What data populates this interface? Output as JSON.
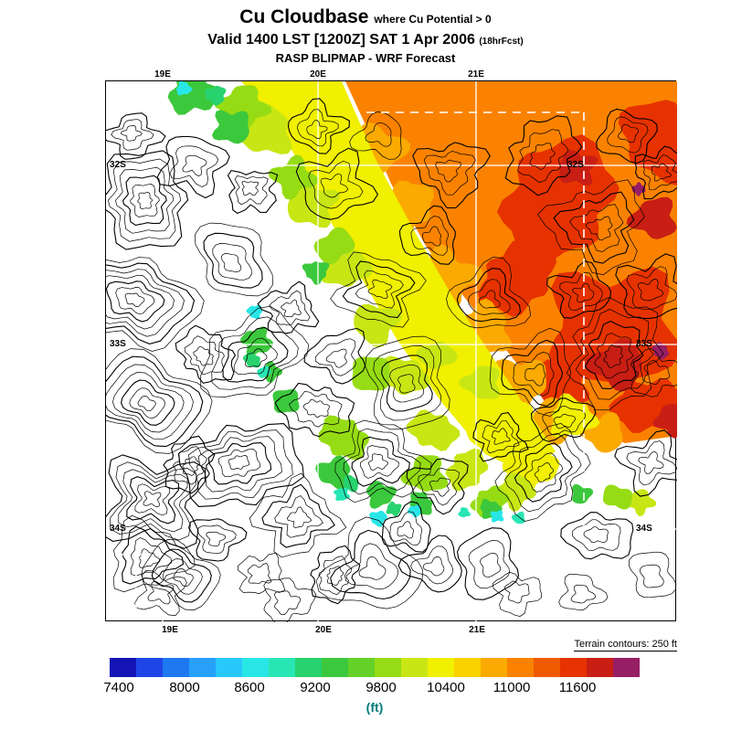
{
  "header": {
    "title": "Cu Cloudbase",
    "title_qualifier": "where Cu Potential > 0",
    "valid_line": "Valid 1400 LST [1200Z] SAT 1 Apr 2006",
    "fcst_tag": "(18hrFcst)",
    "model_line": "RASP BLIPMAP - WRF Forecast"
  },
  "map": {
    "lon_labels_top": [
      "19E",
      "20E",
      "21E"
    ],
    "lon_labels_bottom": [
      "19E",
      "20E",
      "21E"
    ],
    "lat_labels_left": [
      "32S",
      "33S",
      "34S"
    ],
    "lat_labels_right": [
      "32S",
      "33S",
      "34S"
    ],
    "terrain_note": "Terrain contours: 250 ft"
  },
  "colorbar": {
    "unit": "(ft)",
    "tick_labels": [
      "7400",
      "8000",
      "8600",
      "9200",
      "9800",
      "10400",
      "11000",
      "11600"
    ],
    "colors": [
      "#1414b4",
      "#1e46e6",
      "#1e78f0",
      "#28a0fa",
      "#28c8fa",
      "#28e6e6",
      "#28e6b4",
      "#28d26e",
      "#3cc83c",
      "#64d228",
      "#96dc14",
      "#c8e614",
      "#f0f000",
      "#fad200",
      "#faaa00",
      "#fa8200",
      "#f05a00",
      "#e63200",
      "#c81e14",
      "#961e64"
    ]
  },
  "chart_data": {
    "type": "heatmap",
    "title": "Cu Cloudbase where Cu Potential > 0",
    "subtitle": "Valid 1400 LST [1200Z] SAT 1 Apr 2006 (18hrFcst)",
    "source": "RASP BLIPMAP - WRF Forecast",
    "x_tick_labels": [
      "19E",
      "20E",
      "21E"
    ],
    "y_tick_labels": [
      "32S",
      "33S",
      "34S"
    ],
    "colorbar_ticks": [
      7400,
      8000,
      8600,
      9200,
      9800,
      10400,
      11000,
      11600
    ],
    "colorbar_unit": "ft",
    "colorbar_range_est": [
      7200,
      11900
    ],
    "annotation": "Terrain contours: 250 ft",
    "legend_position": "bottom",
    "description": "Filled-contour forecast map of cumulus cloudbase altitude (ft) over 19E-21E / 32S-34S. High values (orange/red, ~10400-11600+ ft) cover the northeast; a diagonal yellow/green band (~8600-9800 ft) runs from north-center to center; scattered cyan/teal patches (~7400-8200 ft) near the center and south; blank (white) where Cu Potential <= 0. Black terrain contours at 250 ft intervals, white lat/lon grid, white dashed sub-domain box in the northeast."
  }
}
